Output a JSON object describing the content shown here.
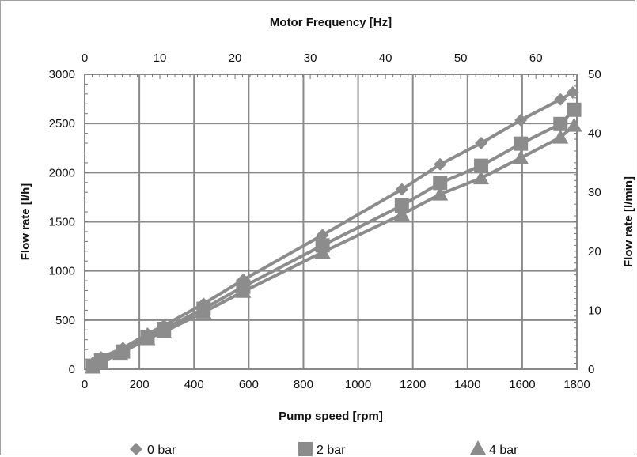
{
  "chart_data": {
    "type": "scatter",
    "title": "Motor Frequency [Hz]",
    "xlabel": "Pump speed [rpm]",
    "ylabel": "Flow rate [l/h]",
    "y2label": "Flow rate [l/min]",
    "x2label": "Motor Frequency [Hz]",
    "xlim": [
      0,
      1800
    ],
    "ylim": [
      0,
      3000
    ],
    "x2lim": [
      0,
      65.45
    ],
    "y2lim": [
      0,
      50
    ],
    "x_ticks": [
      "0",
      "200",
      "400",
      "600",
      "800",
      "1000",
      "1200",
      "1400",
      "1600",
      "1800"
    ],
    "y_ticks": [
      "0",
      "500",
      "1000",
      "1500",
      "2000",
      "2500",
      "3000"
    ],
    "x2_ticks": [
      "0",
      "10",
      "20",
      "30",
      "40",
      "50",
      "60"
    ],
    "y2_ticks": [
      "0",
      "10",
      "20",
      "30",
      "40",
      "50"
    ],
    "grid": true,
    "legend_position": "bottom",
    "series": [
      {
        "name": "0 bar",
        "marker": "diamond",
        "color": "#8c8c8c",
        "x": [
          30,
          60,
          140,
          230,
          290,
          435,
          580,
          870,
          1160,
          1300,
          1450,
          1595,
          1740,
          1785
        ],
        "y": [
          65,
          120,
          215,
          360,
          445,
          665,
          910,
          1365,
          1830,
          2085,
          2300,
          2535,
          2745,
          2815
        ]
      },
      {
        "name": "2 bar",
        "marker": "square",
        "color": "#8c8c8c",
        "x": [
          30,
          60,
          140,
          230,
          290,
          435,
          580,
          870,
          1160,
          1300,
          1450,
          1595,
          1740,
          1790
        ],
        "y": [
          35,
          90,
          180,
          330,
          410,
          615,
          840,
          1260,
          1665,
          1895,
          2070,
          2295,
          2495,
          2640
        ]
      },
      {
        "name": "4 bar",
        "marker": "triangle",
        "color": "#8c8c8c",
        "x": [
          30,
          60,
          130,
          230,
          290,
          435,
          580,
          870,
          1160,
          1300,
          1450,
          1595,
          1740,
          1790
        ],
        "y": [
          20,
          70,
          160,
          310,
          380,
          580,
          790,
          1190,
          1575,
          1780,
          1945,
          2150,
          2360,
          2480
        ]
      }
    ]
  }
}
